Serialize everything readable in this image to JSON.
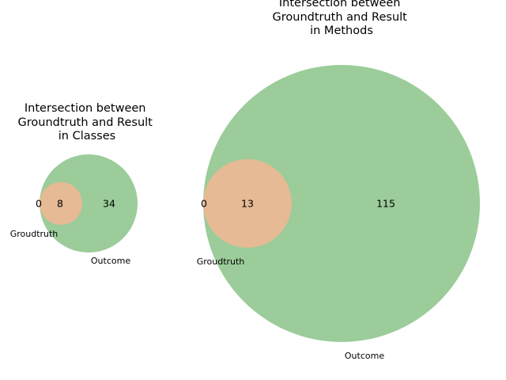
{
  "chart_data": [
    {
      "type": "venn",
      "title": "Intersection between\nGroundtruth and Result\nin Classes",
      "sets": [
        "Groudtruth",
        "Outcome"
      ],
      "values": {
        "groundtruth_only": "0",
        "intersection": "8",
        "outcome_only": "34"
      },
      "colors": {
        "groundtruth": "#e5ba94",
        "outcome": "#9bcc9a"
      }
    },
    {
      "type": "venn",
      "title": "Intersection between\nGroundtruth and Result\nin Methods",
      "sets": [
        "Groudtruth",
        "Outcome"
      ],
      "values": {
        "groundtruth_only": "0",
        "intersection": "13",
        "outcome_only": "115"
      },
      "colors": {
        "groundtruth": "#e5ba94",
        "outcome": "#9bcc9a"
      }
    }
  ]
}
